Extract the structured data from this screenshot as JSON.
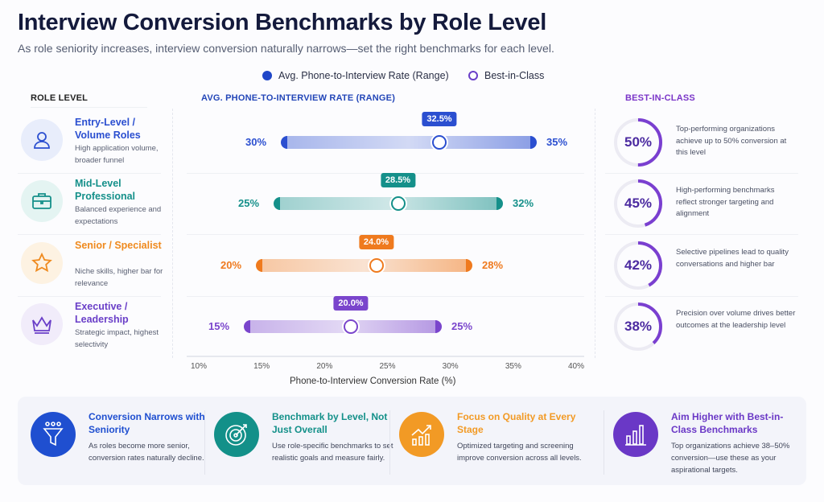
{
  "title": "Interview Conversion Benchmarks by Role Level",
  "subtitle": "As role seniority increases, interview conversion naturally narrows—set the right benchmarks for each level.",
  "legend": {
    "range": "Avg. Phone-to-Interview Rate (Range)",
    "best": "Best-in-Class"
  },
  "headers": {
    "role": "ROLE LEVEL",
    "range": "AVG. PHONE-TO-INTERVIEW RATE (RANGE)",
    "best": "BEST-IN-CLASS"
  },
  "roles": [
    {
      "name": "Entry-Level / Volume Roles",
      "desc": "High application volume, broader funnel",
      "icon": "user-icon",
      "color": "#2b4fd0",
      "bg": "#e8edfb"
    },
    {
      "name": "Mid-Level Professional",
      "desc": "Balanced experience and expectations",
      "icon": "briefcase-icon",
      "color": "#15908a",
      "bg": "#e4f4f2"
    },
    {
      "name": "Senior / Specialist",
      "desc": "Niche skills, higher bar for relevance",
      "icon": "star-icon",
      "color": "#ef8a1e",
      "bg": "#fdf2e2"
    },
    {
      "name": "Executive / Leadership",
      "desc": "Strategic impact, highest selectivity",
      "icon": "crown-icon",
      "color": "#6a3fc8",
      "bg": "#f1ecfa"
    }
  ],
  "chart_data": {
    "type": "range-bar",
    "xlabel": "Phone-to-Interview Conversion Rate (%)",
    "xlim": [
      10,
      40
    ],
    "ticks": [
      "10%",
      "15%",
      "20%",
      "25%",
      "30%",
      "35%",
      "40%"
    ],
    "categories": [
      "Entry-Level / Volume Roles",
      "Mid-Level Professional",
      "Senior / Specialist",
      "Executive / Leadership"
    ],
    "min": [
      30,
      25,
      20,
      15
    ],
    "max": [
      35,
      32,
      28,
      25
    ],
    "avg": [
      32.5,
      28.5,
      24.0,
      20.0
    ],
    "min_labels": [
      "30%",
      "25%",
      "20%",
      "15%"
    ],
    "max_labels": [
      "35%",
      "32%",
      "28%",
      "25%"
    ],
    "avg_labels": [
      "32.5%",
      "28.5%",
      "24.0%",
      "20.0%"
    ],
    "colors": [
      "#2b4fd0",
      "#15908a",
      "#ef7a1e",
      "#7a45cc"
    ],
    "best_in_class": [
      50,
      45,
      42,
      38
    ],
    "best_labels": [
      "50%",
      "45%",
      "42%",
      "38%"
    ]
  },
  "best": [
    "Top-performing organizations achieve up to 50% conversion at this level",
    "High-performing benchmarks reflect stronger targeting and alignment",
    "Selective pipelines lead to quality conversations and higher bar",
    "Precision over volume drives better outcomes at the leadership level"
  ],
  "cards": [
    {
      "title": "Conversion Narrows with Seniority",
      "desc": "As roles become more senior, conversion rates naturally decline.",
      "icon": "funnel-icon",
      "color": "#1f4fd0"
    },
    {
      "title": "Benchmark by Level, Not Just Overall",
      "desc": "Use role-specific benchmarks to set realistic goals and measure fairly.",
      "icon": "target-icon",
      "color": "#139089"
    },
    {
      "title": "Focus on Quality at Every Stage",
      "desc": "Optimized targeting and screening improve conversion across all levels.",
      "icon": "growth-chart-icon",
      "color": "#f29a25"
    },
    {
      "title": "Aim Higher with Best-in-Class Benchmarks",
      "desc": "Top organizations achieve 38–50% conversion—use these as your aspirational targets.",
      "icon": "bar-chart-icon",
      "color": "#6a38c6"
    }
  ]
}
